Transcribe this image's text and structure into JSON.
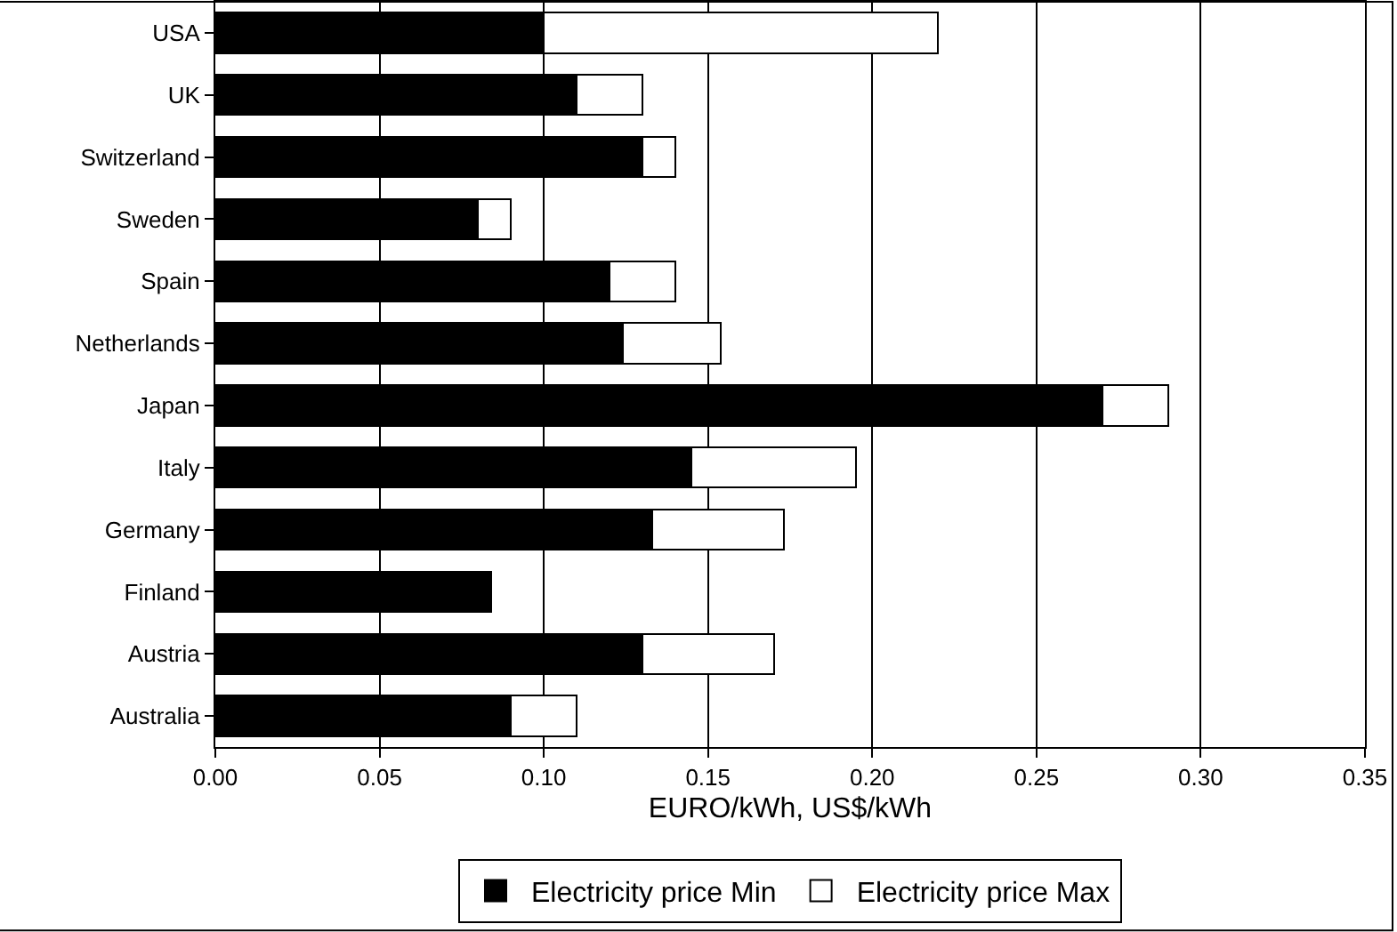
{
  "chart_data": {
    "type": "bar",
    "orientation": "horizontal",
    "stacked": true,
    "categories": [
      "USA",
      "UK",
      "Switzerland",
      "Sweden",
      "Spain",
      "Netherlands",
      "Japan",
      "Italy",
      "Germany",
      "Finland",
      "Austria",
      "Australia"
    ],
    "series": [
      {
        "name": "Electricity price Min",
        "color": "#000000",
        "values": [
          0.1,
          0.11,
          0.13,
          0.08,
          0.12,
          0.124,
          0.27,
          0.145,
          0.133,
          0.084,
          0.13,
          0.09
        ]
      },
      {
        "name": "Electricity price Max",
        "color": "#ffffff",
        "values": [
          0.12,
          0.02,
          0.01,
          0.01,
          0.02,
          0.03,
          0.02,
          0.05,
          0.04,
          null,
          0.04,
          0.02
        ]
      }
    ],
    "xlabel": "EURO/kWh, US$/kWh",
    "xlim": [
      0,
      0.35
    ],
    "xticks": [
      {
        "value": 0,
        "label": "0.00"
      },
      {
        "value": 0.05,
        "label": "0.05"
      },
      {
        "value": 0.1,
        "label": "0.10"
      },
      {
        "value": 0.15,
        "label": "0.15"
      },
      {
        "value": 0.2,
        "label": "0.20"
      },
      {
        "value": 0.25,
        "label": "0.25"
      },
      {
        "value": 0.3,
        "label": "0.30"
      },
      {
        "value": 0.35,
        "label": "0.35"
      }
    ],
    "grid": "x",
    "legend": "bottom"
  }
}
